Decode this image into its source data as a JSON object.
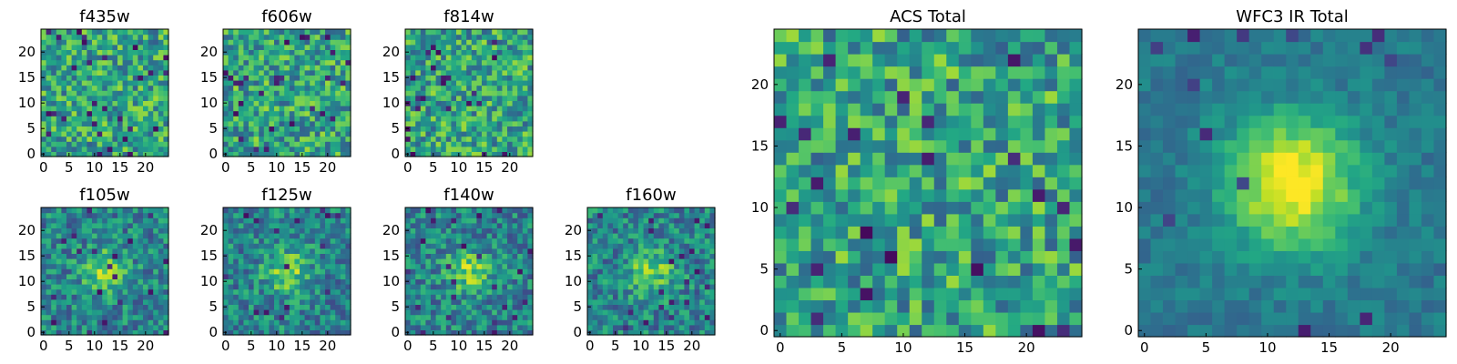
{
  "chart_data": [
    {
      "type": "heatmap",
      "title": "f435w",
      "xlim": [
        0,
        24
      ],
      "ylim": [
        0,
        24
      ],
      "xticks": [
        0,
        5,
        10,
        15,
        20
      ],
      "yticks": [
        0,
        5,
        10,
        15,
        20
      ],
      "colormap": "viridis",
      "pattern": "noise",
      "seed": 11
    },
    {
      "type": "heatmap",
      "title": "f606w",
      "xlim": [
        0,
        24
      ],
      "ylim": [
        0,
        24
      ],
      "xticks": [
        0,
        5,
        10,
        15,
        20
      ],
      "yticks": [
        0,
        5,
        10,
        15,
        20
      ],
      "colormap": "viridis",
      "pattern": "noise",
      "seed": 23
    },
    {
      "type": "heatmap",
      "title": "f814w",
      "xlim": [
        0,
        24
      ],
      "ylim": [
        0,
        24
      ],
      "xticks": [
        0,
        5,
        10,
        15,
        20
      ],
      "yticks": [
        0,
        5,
        10,
        15,
        20
      ],
      "colormap": "viridis",
      "pattern": "noise",
      "seed": 37
    },
    {
      "type": "heatmap",
      "title": "f105w",
      "xlim": [
        0,
        24
      ],
      "ylim": [
        0,
        24
      ],
      "xticks": [
        0,
        5,
        10,
        15,
        20
      ],
      "yticks": [
        0,
        5,
        10,
        15,
        20
      ],
      "colormap": "viridis",
      "pattern": "source",
      "seed": 41
    },
    {
      "type": "heatmap",
      "title": "f125w",
      "xlim": [
        0,
        24
      ],
      "ylim": [
        0,
        24
      ],
      "xticks": [
        0,
        5,
        10,
        15,
        20
      ],
      "yticks": [
        0,
        5,
        10,
        15,
        20
      ],
      "colormap": "viridis",
      "pattern": "source",
      "seed": 53
    },
    {
      "type": "heatmap",
      "title": "f140w",
      "xlim": [
        0,
        24
      ],
      "ylim": [
        0,
        24
      ],
      "xticks": [
        0,
        5,
        10,
        15,
        20
      ],
      "yticks": [
        0,
        5,
        10,
        15,
        20
      ],
      "colormap": "viridis",
      "pattern": "source",
      "seed": 67
    },
    {
      "type": "heatmap",
      "title": "f160w",
      "xlim": [
        0,
        24
      ],
      "ylim": [
        0,
        24
      ],
      "xticks": [
        0,
        5,
        10,
        15,
        20
      ],
      "yticks": [
        0,
        5,
        10,
        15,
        20
      ],
      "colormap": "viridis",
      "pattern": "source",
      "seed": 71
    },
    {
      "type": "heatmap",
      "title": "ACS Total",
      "xlim": [
        0,
        24
      ],
      "ylim": [
        0,
        24
      ],
      "xticks": [
        0,
        5,
        10,
        15,
        20
      ],
      "yticks": [
        0,
        5,
        10,
        15,
        20
      ],
      "colormap": "viridis",
      "pattern": "noise",
      "seed": 83
    },
    {
      "type": "heatmap",
      "title": "WFC3 IR Total",
      "xlim": [
        0,
        24
      ],
      "ylim": [
        0,
        24
      ],
      "xticks": [
        0,
        5,
        10,
        15,
        20
      ],
      "yticks": [
        0,
        5,
        10,
        15,
        20
      ],
      "colormap": "viridis",
      "pattern": "source-strong",
      "seed": 97
    }
  ]
}
